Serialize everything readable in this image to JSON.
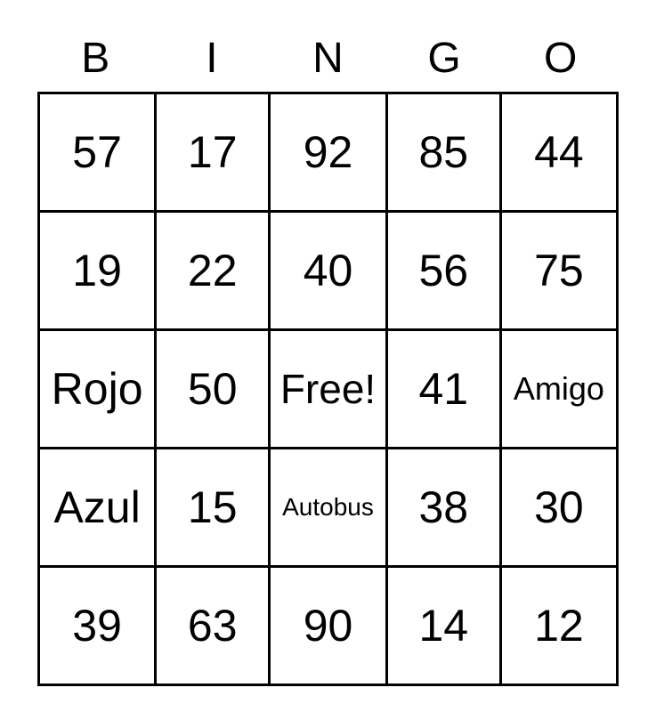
{
  "card_title": "BINGO",
  "header": {
    "letters": [
      "B",
      "I",
      "N",
      "G",
      "O"
    ]
  },
  "grid": {
    "rows": [
      [
        "57",
        "17",
        "92",
        "85",
        "44"
      ],
      [
        "19",
        "22",
        "40",
        "56",
        "75"
      ],
      [
        "Rojo",
        "50",
        "Free!",
        "41",
        "Amigo"
      ],
      [
        "Azul",
        "15",
        "Autobus",
        "38",
        "30"
      ],
      [
        "39",
        "63",
        "90",
        "14",
        "12"
      ]
    ],
    "free_cell": "Free!"
  },
  "colors": {
    "text": "#000000",
    "border": "#000000",
    "background": "#ffffff"
  }
}
